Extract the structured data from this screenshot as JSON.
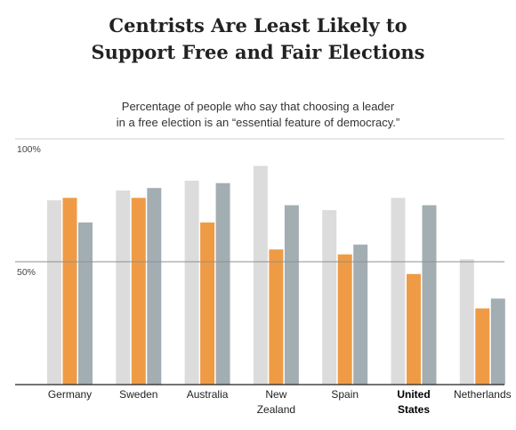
{
  "title_line1": "Centrists Are Least Likely to",
  "title_line2": "Support Free and Fair Elections",
  "subtitle_line1": "Percentage of people who say that choosing a leader",
  "subtitle_line2": "in a free election is an “essential feature of democracy.”",
  "colors": {
    "left": "#dcdcdc",
    "center": "#ef9b45",
    "right": "#a3aeb3"
  },
  "chart_data": {
    "type": "bar",
    "title": "Centrists Are Least Likely to Support Free and Fair Elections",
    "subtitle": "Percentage of people who say that choosing a leader in a free election is an “essential feature of democracy.”",
    "categories": [
      [
        "Germany"
      ],
      [
        "Sweden"
      ],
      [
        "Australia"
      ],
      [
        "New",
        "Zealand"
      ],
      [
        "Spain"
      ],
      [
        "United",
        "States"
      ],
      [
        "Netherlands"
      ]
    ],
    "highlight_category": 5,
    "series": [
      {
        "values": [
          75,
          79,
          83,
          89,
          71,
          76,
          51
        ]
      },
      {
        "values": [
          76,
          76,
          66,
          55,
          53,
          45,
          31
        ]
      },
      {
        "values": [
          66,
          80,
          82,
          73,
          57,
          73,
          35
        ]
      }
    ],
    "ylim": [
      0,
      100
    ],
    "yticks": [
      {
        "value": 100,
        "label": "100%"
      },
      {
        "value": 50,
        "label": "50%"
      }
    ],
    "grid": true
  }
}
